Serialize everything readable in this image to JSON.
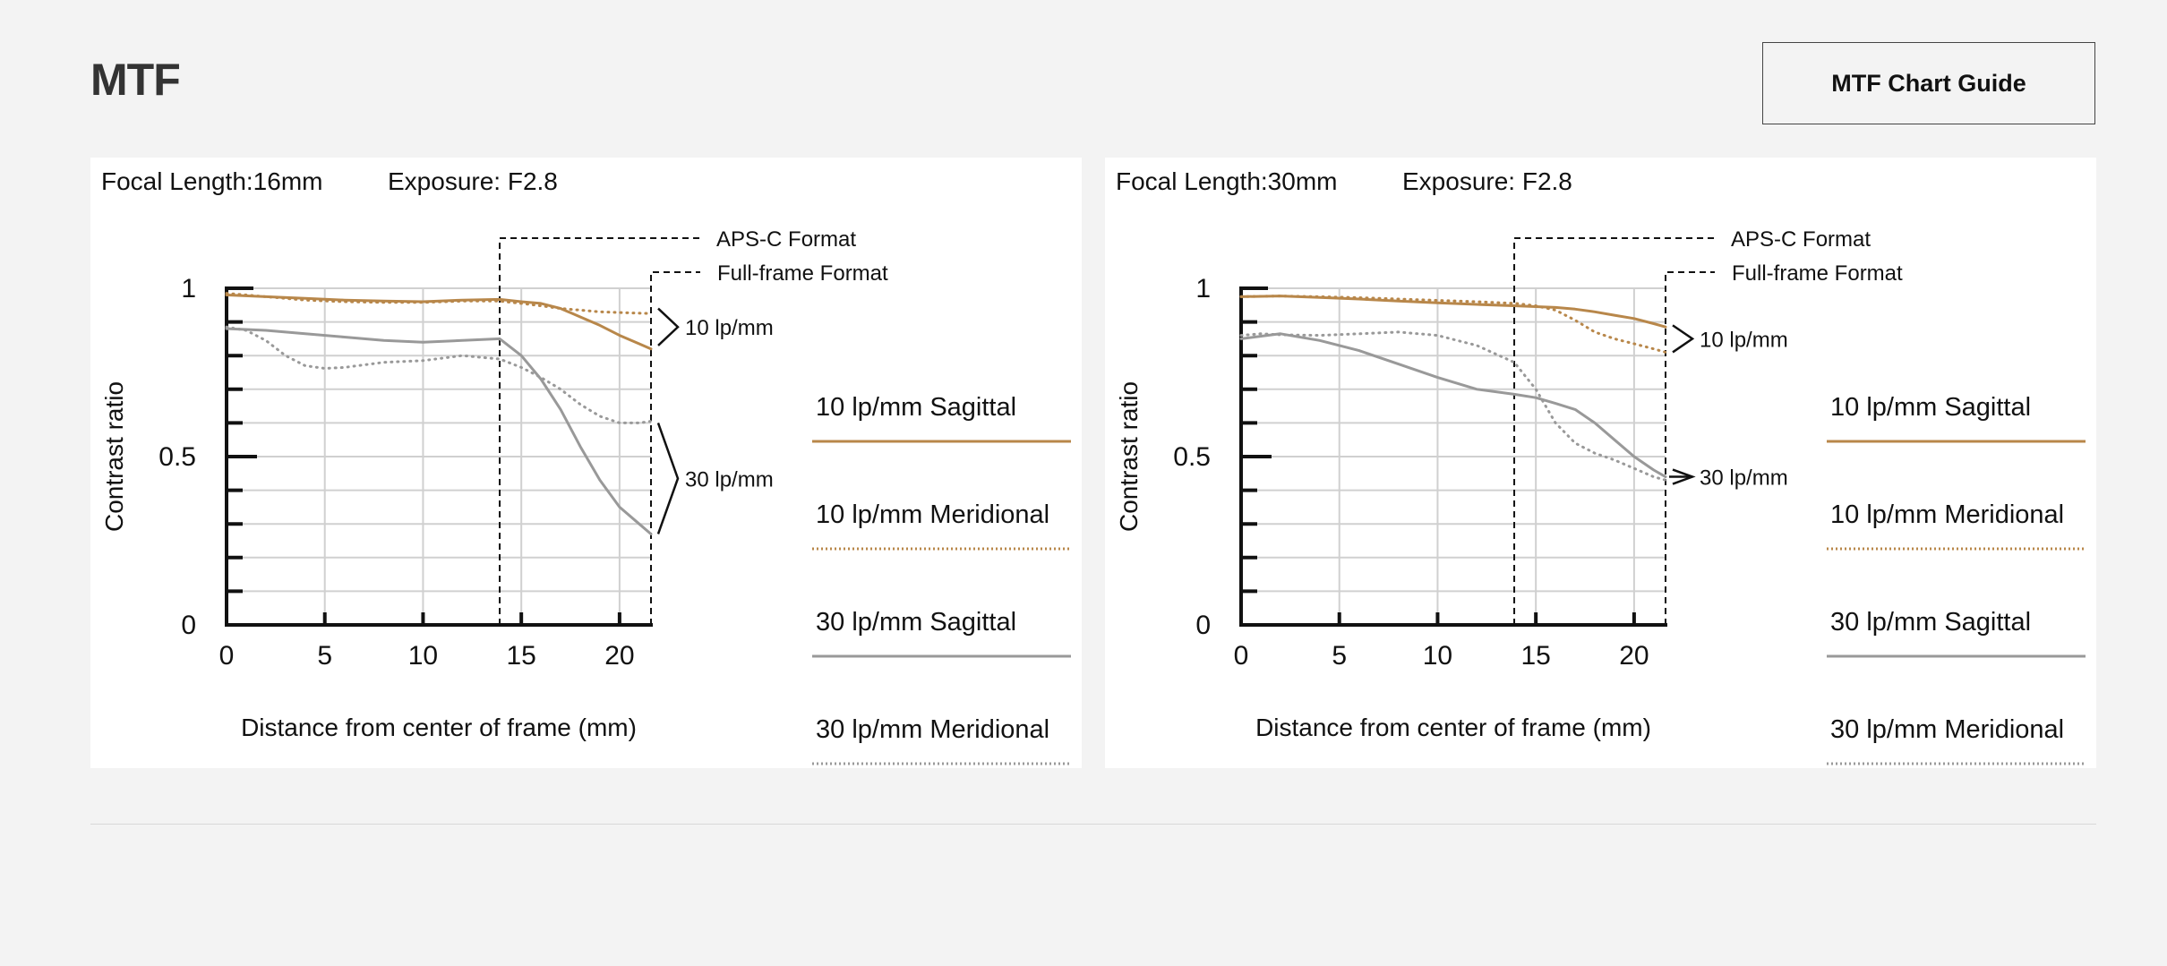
{
  "header": {
    "title": "MTF",
    "guide_button": "MTF Chart Guide"
  },
  "colors": {
    "ten_lpmm": "#b8874a",
    "thirty_lpmm": "#999999",
    "axis": "#111111",
    "grid": "#d0d0d0",
    "format_line": "#111111"
  },
  "chart_data": [
    {
      "type": "line",
      "focal_length": "Focal Length:16mm",
      "exposure": "Exposure: F2.8",
      "xlabel": "Distance from center of frame (mm)",
      "ylabel": "Contrast ratio",
      "xlim": [
        0,
        21.6
      ],
      "ylim": [
        0,
        1
      ],
      "x_ticks": [
        0,
        5,
        10,
        15,
        20
      ],
      "y_tick_labels": [
        {
          "v": 1,
          "t": "1"
        },
        {
          "v": 0.5,
          "t": "0.5"
        },
        {
          "v": 0,
          "t": "0"
        }
      ],
      "grid": true,
      "formats": [
        {
          "label": "APS-C Format",
          "x": 13.9
        },
        {
          "label": "Full-frame Format",
          "x": 21.6
        }
      ],
      "groups": [
        {
          "label": "10 lp/mm",
          "y_top": 0.94,
          "y_bottom": 0.83
        },
        {
          "label": "30 lp/mm",
          "y_top": 0.6,
          "y_bottom": 0.27
        }
      ],
      "series": [
        {
          "name": "10 lp/mm Sagittal",
          "freq": 10,
          "style": "solid",
          "x": [
            0,
            2,
            4,
            6,
            8,
            10,
            12,
            13.9,
            15,
            16,
            17,
            18,
            19,
            20,
            21,
            21.6
          ],
          "y": [
            0.98,
            0.975,
            0.97,
            0.965,
            0.962,
            0.96,
            0.965,
            0.967,
            0.96,
            0.955,
            0.94,
            0.915,
            0.89,
            0.86,
            0.835,
            0.82
          ]
        },
        {
          "name": "10 lp/mm Meridional",
          "freq": 10,
          "style": "dotted",
          "x": [
            0,
            2,
            4,
            6,
            8,
            10,
            12,
            13.9,
            15,
            16,
            17,
            18,
            19,
            20,
            21,
            21.6
          ],
          "y": [
            0.985,
            0.975,
            0.965,
            0.96,
            0.958,
            0.958,
            0.962,
            0.962,
            0.955,
            0.948,
            0.94,
            0.935,
            0.93,
            0.928,
            0.926,
            0.925
          ]
        },
        {
          "name": "30 lp/mm Sagittal",
          "freq": 30,
          "style": "solid",
          "x": [
            0,
            2,
            4,
            6,
            8,
            10,
            12,
            13.9,
            15,
            16,
            17,
            18,
            19,
            20,
            21,
            21.6
          ],
          "y": [
            0.88,
            0.875,
            0.865,
            0.855,
            0.845,
            0.84,
            0.845,
            0.85,
            0.8,
            0.73,
            0.64,
            0.53,
            0.43,
            0.35,
            0.3,
            0.27
          ]
        },
        {
          "name": "30 lp/mm Meridional",
          "freq": 30,
          "style": "dotted",
          "x": [
            0,
            1,
            2,
            3,
            4,
            5,
            6,
            8,
            10,
            12,
            13.9,
            15,
            16,
            17,
            18,
            19,
            20,
            21,
            21.6
          ],
          "y": [
            0.885,
            0.875,
            0.845,
            0.8,
            0.77,
            0.762,
            0.765,
            0.78,
            0.785,
            0.8,
            0.79,
            0.765,
            0.735,
            0.7,
            0.655,
            0.62,
            0.6,
            0.6,
            0.605
          ]
        }
      ],
      "legend": [
        {
          "label": "10 lp/mm Sagittal",
          "freq": 10,
          "style": "solid"
        },
        {
          "label": "10 lp/mm Meridional",
          "freq": 10,
          "style": "dotted"
        },
        {
          "label": "30 lp/mm Sagittal",
          "freq": 30,
          "style": "solid"
        },
        {
          "label": "30 lp/mm Meridional",
          "freq": 30,
          "style": "dotted"
        }
      ]
    },
    {
      "type": "line",
      "focal_length": "Focal Length:30mm",
      "exposure": "Exposure: F2.8",
      "xlabel": "Distance from center of frame (mm)",
      "ylabel": "Contrast ratio",
      "xlim": [
        0,
        21.6
      ],
      "ylim": [
        0,
        1
      ],
      "x_ticks": [
        0,
        5,
        10,
        15,
        20
      ],
      "y_tick_labels": [
        {
          "v": 1,
          "t": "1"
        },
        {
          "v": 0.5,
          "t": "0.5"
        },
        {
          "v": 0,
          "t": "0"
        }
      ],
      "grid": true,
      "formats": [
        {
          "label": "APS-C Format",
          "x": 13.9
        },
        {
          "label": "Full-frame Format",
          "x": 21.6
        }
      ],
      "groups": [
        {
          "label": "10 lp/mm",
          "y_top": 0.89,
          "y_bottom": 0.81
        },
        {
          "label": "30 lp/mm",
          "y_top": 0.44,
          "y_bottom": 0.44
        }
      ],
      "series": [
        {
          "name": "10 lp/mm Sagittal",
          "freq": 10,
          "style": "solid",
          "x": [
            0,
            2,
            4,
            6,
            8,
            10,
            12,
            14,
            16,
            17,
            18,
            19,
            20,
            21,
            21.6
          ],
          "y": [
            0.975,
            0.977,
            0.973,
            0.968,
            0.962,
            0.957,
            0.952,
            0.948,
            0.943,
            0.938,
            0.93,
            0.92,
            0.91,
            0.895,
            0.885
          ]
        },
        {
          "name": "10 lp/mm Meridional",
          "freq": 10,
          "style": "dotted",
          "x": [
            0,
            2,
            4,
            6,
            8,
            10,
            12,
            14,
            15,
            16,
            17,
            18,
            19,
            20,
            21,
            21.6
          ],
          "y": [
            0.975,
            0.977,
            0.975,
            0.972,
            0.968,
            0.964,
            0.96,
            0.955,
            0.948,
            0.935,
            0.905,
            0.87,
            0.85,
            0.835,
            0.82,
            0.81
          ]
        },
        {
          "name": "30 lp/mm Sagittal",
          "freq": 30,
          "style": "solid",
          "x": [
            0,
            2,
            4,
            6,
            8,
            10,
            12,
            13.9,
            15,
            16,
            17,
            18,
            19,
            20,
            21,
            21.6
          ],
          "y": [
            0.85,
            0.865,
            0.845,
            0.815,
            0.775,
            0.735,
            0.7,
            0.685,
            0.675,
            0.658,
            0.64,
            0.6,
            0.55,
            0.5,
            0.46,
            0.44
          ]
        },
        {
          "name": "30 lp/mm Meridional",
          "freq": 30,
          "style": "dotted",
          "x": [
            0,
            1,
            2,
            4,
            6,
            8,
            10,
            12,
            13.9,
            15,
            16,
            17,
            18,
            19,
            20,
            21,
            21.6
          ],
          "y": [
            0.86,
            0.865,
            0.862,
            0.86,
            0.865,
            0.87,
            0.86,
            0.83,
            0.78,
            0.7,
            0.6,
            0.54,
            0.51,
            0.49,
            0.465,
            0.44,
            0.43
          ]
        }
      ],
      "legend": [
        {
          "label": "10 lp/mm Sagittal",
          "freq": 10,
          "style": "solid"
        },
        {
          "label": "10 lp/mm Meridional",
          "freq": 10,
          "style": "dotted"
        },
        {
          "label": "30 lp/mm Sagittal",
          "freq": 30,
          "style": "solid"
        },
        {
          "label": "30 lp/mm Meridional",
          "freq": 30,
          "style": "dotted"
        }
      ]
    }
  ]
}
